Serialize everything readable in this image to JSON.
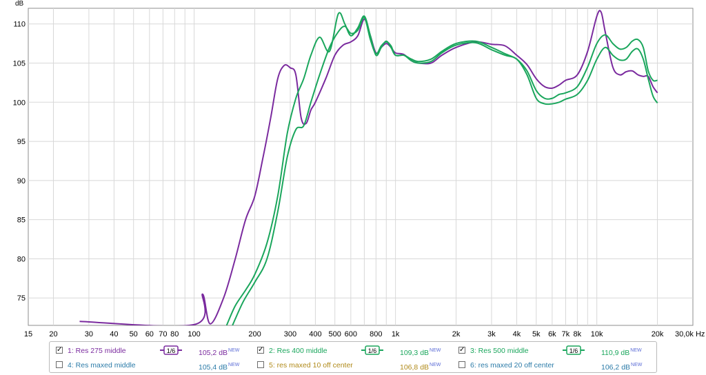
{
  "chart_data": {
    "type": "line",
    "y_unit_label": "dB",
    "x_unit_label": "Hz",
    "xscale": "log",
    "xlim": [
      15,
      30000
    ],
    "ylim": [
      71.5,
      112
    ],
    "grid": true,
    "x_tick_labels": [
      {
        "v": 15,
        "t": "15"
      },
      {
        "v": 20,
        "t": "20"
      },
      {
        "v": 30,
        "t": "30"
      },
      {
        "v": 40,
        "t": "40"
      },
      {
        "v": 50,
        "t": "50"
      },
      {
        "v": 60,
        "t": "60"
      },
      {
        "v": 70,
        "t": "70"
      },
      {
        "v": 80,
        "t": "80"
      },
      {
        "v": 100,
        "t": "100"
      },
      {
        "v": 200,
        "t": "200"
      },
      {
        "v": 300,
        "t": "300"
      },
      {
        "v": 400,
        "t": "400"
      },
      {
        "v": 500,
        "t": "500"
      },
      {
        "v": 600,
        "t": "600"
      },
      {
        "v": 800,
        "t": "800"
      },
      {
        "v": 1000,
        "t": "1k"
      },
      {
        "v": 2000,
        "t": "2k"
      },
      {
        "v": 3000,
        "t": "3k"
      },
      {
        "v": 4000,
        "t": "4k"
      },
      {
        "v": 5000,
        "t": "5k"
      },
      {
        "v": 6000,
        "t": "6k"
      },
      {
        "v": 7000,
        "t": "7k"
      },
      {
        "v": 8000,
        "t": "8k"
      },
      {
        "v": 10000,
        "t": "10k"
      },
      {
        "v": 20000,
        "t": "20k"
      },
      {
        "v": 30000,
        "t": "30,0k Hz"
      }
    ],
    "y_ticks": [
      75,
      80,
      85,
      90,
      95,
      100,
      105,
      110
    ],
    "y_tick_labels": [
      "75",
      "80",
      "85",
      "90",
      "95",
      "100",
      "105",
      "110"
    ],
    "series": [
      {
        "name": "1: Res 275 middle",
        "color": "#7a2a9e",
        "points": [
          [
            27,
            72
          ],
          [
            100,
            71.6
          ],
          [
            110,
            75.5
          ],
          [
            120,
            71.7
          ],
          [
            140,
            75
          ],
          [
            160,
            80
          ],
          [
            180,
            85
          ],
          [
            200,
            88
          ],
          [
            220,
            93
          ],
          [
            240,
            98
          ],
          [
            260,
            103
          ],
          [
            280,
            104.7
          ],
          [
            300,
            104.4
          ],
          [
            320,
            103.5
          ],
          [
            340,
            98
          ],
          [
            360,
            97.3
          ],
          [
            380,
            99
          ],
          [
            400,
            100
          ],
          [
            450,
            103
          ],
          [
            500,
            106
          ],
          [
            550,
            107.3
          ],
          [
            600,
            107.7
          ],
          [
            650,
            108.5
          ],
          [
            700,
            110.6
          ],
          [
            750,
            108.5
          ],
          [
            800,
            106.3
          ],
          [
            850,
            107
          ],
          [
            900,
            107.5
          ],
          [
            950,
            107
          ],
          [
            1000,
            106.3
          ],
          [
            1100,
            106.1
          ],
          [
            1200,
            105.3
          ],
          [
            1300,
            105
          ],
          [
            1500,
            105
          ],
          [
            1700,
            106
          ],
          [
            2000,
            107
          ],
          [
            2500,
            107.7
          ],
          [
            3000,
            107.4
          ],
          [
            3500,
            107.2
          ],
          [
            4000,
            106
          ],
          [
            4500,
            104.8
          ],
          [
            5000,
            103
          ],
          [
            5500,
            102
          ],
          [
            6000,
            101.8
          ],
          [
            6500,
            102.2
          ],
          [
            7000,
            102.8
          ],
          [
            8000,
            103.5
          ],
          [
            9000,
            106.5
          ],
          [
            10000,
            111
          ],
          [
            10500,
            111.5
          ],
          [
            11000,
            109
          ],
          [
            12000,
            104.5
          ],
          [
            13000,
            103.5
          ],
          [
            14000,
            103.9
          ],
          [
            15000,
            104
          ],
          [
            16000,
            103.5
          ],
          [
            17000,
            103.3
          ],
          [
            18000,
            103.3
          ],
          [
            19000,
            102
          ],
          [
            20000,
            101.2
          ]
        ]
      },
      {
        "name": "2: Res 400 middle",
        "color": "#1aa65c",
        "points": [
          [
            145,
            71.5
          ],
          [
            160,
            74
          ],
          [
            180,
            76
          ],
          [
            200,
            78
          ],
          [
            230,
            82
          ],
          [
            260,
            88
          ],
          [
            290,
            96
          ],
          [
            320,
            100.5
          ],
          [
            350,
            103
          ],
          [
            380,
            106
          ],
          [
            420,
            108.3
          ],
          [
            470,
            106.5
          ],
          [
            520,
            111.3
          ],
          [
            560,
            110
          ],
          [
            600,
            108.5
          ],
          [
            650,
            109.5
          ],
          [
            700,
            111
          ],
          [
            750,
            108.5
          ],
          [
            800,
            106
          ],
          [
            850,
            107
          ],
          [
            900,
            107.8
          ],
          [
            950,
            107
          ],
          [
            1000,
            106
          ],
          [
            1100,
            106
          ],
          [
            1200,
            105.5
          ],
          [
            1300,
            105.2
          ],
          [
            1500,
            105.5
          ],
          [
            1700,
            106.5
          ],
          [
            2000,
            107.5
          ],
          [
            2500,
            107.8
          ],
          [
            3000,
            107
          ],
          [
            3500,
            106.2
          ],
          [
            4000,
            105.5
          ],
          [
            4500,
            104
          ],
          [
            5000,
            101.5
          ],
          [
            5500,
            100.5
          ],
          [
            6000,
            100.5
          ],
          [
            6500,
            101
          ],
          [
            7000,
            101.2
          ],
          [
            8000,
            102
          ],
          [
            9000,
            104.5
          ],
          [
            10000,
            107.5
          ],
          [
            11000,
            108.6
          ],
          [
            12000,
            107.5
          ],
          [
            13000,
            106.8
          ],
          [
            14000,
            107
          ],
          [
            15000,
            107.8
          ],
          [
            16000,
            108
          ],
          [
            17000,
            107
          ],
          [
            18000,
            104
          ],
          [
            19000,
            102.8
          ],
          [
            20000,
            102.8
          ]
        ]
      },
      {
        "name": "3: Res 500 middle",
        "color": "#1aa65c",
        "points": [
          [
            155,
            71.5
          ],
          [
            175,
            74.5
          ],
          [
            200,
            77
          ],
          [
            230,
            80
          ],
          [
            260,
            86
          ],
          [
            290,
            93
          ],
          [
            320,
            96.5
          ],
          [
            350,
            97
          ],
          [
            380,
            100
          ],
          [
            420,
            103.5
          ],
          [
            470,
            107
          ],
          [
            520,
            109
          ],
          [
            560,
            109.7
          ],
          [
            600,
            108.8
          ],
          [
            650,
            109.2
          ],
          [
            700,
            110.8
          ],
          [
            750,
            108
          ],
          [
            800,
            106.2
          ],
          [
            850,
            107.2
          ],
          [
            900,
            107.7
          ],
          [
            950,
            107.2
          ],
          [
            1000,
            106
          ],
          [
            1100,
            106
          ],
          [
            1200,
            105.3
          ],
          [
            1300,
            105
          ],
          [
            1500,
            105.2
          ],
          [
            1700,
            106.3
          ],
          [
            2000,
            107.3
          ],
          [
            2500,
            107.6
          ],
          [
            3000,
            106.7
          ],
          [
            3500,
            106
          ],
          [
            4000,
            105.5
          ],
          [
            4500,
            103.5
          ],
          [
            5000,
            100.5
          ],
          [
            5500,
            99.8
          ],
          [
            6000,
            99.8
          ],
          [
            6500,
            100
          ],
          [
            7000,
            100.4
          ],
          [
            8000,
            101
          ],
          [
            9000,
            102.8
          ],
          [
            10000,
            105.5
          ],
          [
            11000,
            107
          ],
          [
            12000,
            106
          ],
          [
            13000,
            105.4
          ],
          [
            14000,
            105.5
          ],
          [
            15000,
            106.5
          ],
          [
            16000,
            106.8
          ],
          [
            17000,
            105.5
          ],
          [
            18000,
            103
          ],
          [
            19000,
            100.8
          ],
          [
            20000,
            99.9
          ]
        ]
      }
    ],
    "legend": [
      {
        "checked": true,
        "label": "1: Res 275 middle",
        "smoothing": "1/6",
        "value": "105,2 dB",
        "badge": "NEW",
        "color": "#7a2a9e",
        "line_color": "#7a2a9e"
      },
      {
        "checked": true,
        "label": "2: Res 400 middle",
        "smoothing": "1/6",
        "value": "109,3 dB",
        "badge": "NEW",
        "color": "#1aa65c",
        "line_color": "#1aa65c"
      },
      {
        "checked": true,
        "label": "3: Res 500 middle",
        "smoothing": "1/6",
        "value": "110,9 dB",
        "badge": "NEW",
        "color": "#1aa65c",
        "line_color": "#1aa65c"
      },
      {
        "checked": false,
        "label": "4: Res maxed middle",
        "smoothing": "",
        "value": "105,4 dB",
        "badge": "NEW",
        "color": "#2b7ba8",
        "line_color": ""
      },
      {
        "checked": false,
        "label": "5: res maxed 10 off center",
        "smoothing": "",
        "value": "106,8 dB",
        "badge": "NEW",
        "color": "#b08a1a",
        "line_color": ""
      },
      {
        "checked": false,
        "label": "6: res maxed 20 off center",
        "smoothing": "",
        "value": "106,2 dB",
        "badge": "NEW",
        "color": "#2b7ba8",
        "line_color": ""
      }
    ]
  }
}
